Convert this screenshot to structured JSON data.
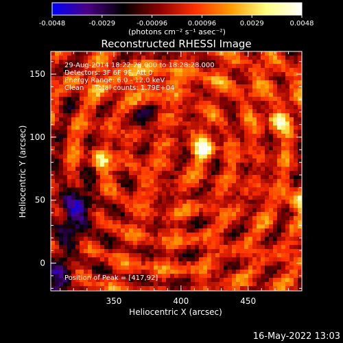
{
  "chart_data": {
    "type": "heatmap",
    "title": "Reconstructed RHESSI Image",
    "xlabel": "Heliocentric X (arcsec)",
    "ylabel": "Heliocentric Y (arcsec)",
    "xlim": [
      303,
      490
    ],
    "ylim": [
      -22,
      168
    ],
    "x_ticks": [
      350,
      400,
      450
    ],
    "y_ticks": [
      0,
      50,
      100,
      150
    ],
    "colorbar": {
      "range": [
        -0.0048,
        0.0048
      ],
      "ticks": [
        "-0.0048",
        "-0.0029",
        "-0.00096",
        "0.00096",
        "0.0029",
        "0.0048"
      ],
      "unit_label": "(photons cm⁻² s⁻¹ asec⁻²)",
      "colormap": [
        "#0000ff",
        "#4b0082",
        "#000000",
        "#8b0000",
        "#ff3000",
        "#ff9a00",
        "#ffff80",
        "#ffffff"
      ]
    },
    "annotations": [
      "29-Aug-2014 18:22:28.000 to 18:28:28.000",
      "Detectors: 3F 6F 9F, Att 0",
      "Energy Range: 6.0 - 12.0 keV",
      "Clean     Total counts: 1.79E+04"
    ],
    "peak_label": "Position of Peak = [417,92]",
    "peak": [
      417,
      92
    ],
    "bright_sources": [
      {
        "x": 417,
        "y": 92,
        "intensity": 1.0
      },
      {
        "x": 470,
        "y": 115,
        "intensity": 0.95
      },
      {
        "x": 485,
        "y": 52,
        "intensity": 0.9
      },
      {
        "x": 338,
        "y": 83,
        "intensity": 0.6
      },
      {
        "x": 318,
        "y": 148,
        "intensity": 0.55
      }
    ]
  },
  "footer": {
    "timestamp": "16-May-2022 13:03"
  }
}
